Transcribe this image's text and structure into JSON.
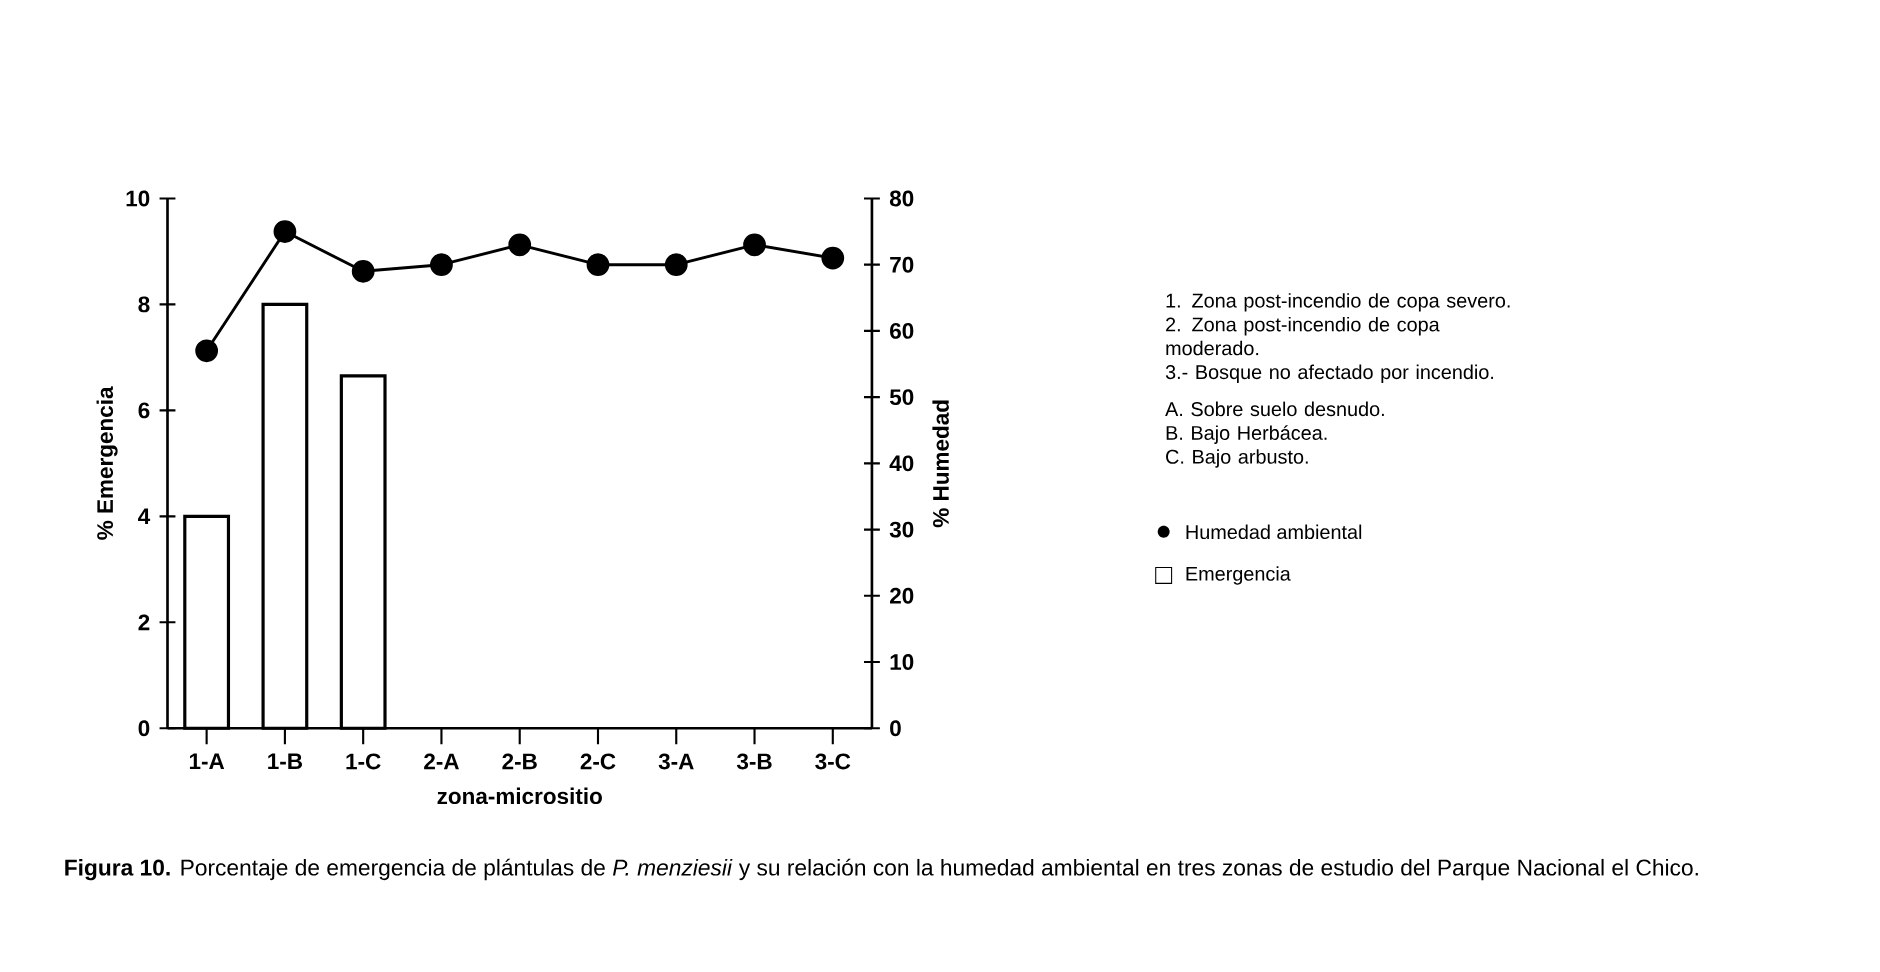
{
  "chart_data": {
    "type": "bar",
    "categories": [
      "1-A",
      "1-B",
      "1-C",
      "2-A",
      "2-B",
      "2-C",
      "3-A",
      "3-B",
      "3-C"
    ],
    "series": [
      {
        "name": "Humedad ambiental",
        "type": "line",
        "axis": "y2",
        "color": "#000000",
        "marker": "circle",
        "line_style": "solid",
        "values": [
          57,
          75,
          69,
          70,
          73,
          70,
          70,
          73,
          71
        ]
      },
      {
        "name": "Emergencia",
        "color": "#ffffff",
        "values": [
          4,
          8,
          6.65,
          null,
          null,
          null,
          null,
          null,
          null
        ]
      }
    ],
    "xlabel": "zona-micrositio",
    "ylabel": "% Emergencia",
    "y2label": "% Humedad",
    "ylim": [
      0,
      10
    ],
    "yticks": [
      0,
      2,
      4,
      6,
      8,
      10
    ],
    "y2lim": [
      0,
      80
    ],
    "y2ticks": [
      0,
      10,
      20,
      30,
      40,
      50,
      60,
      70,
      80
    ],
    "legend": "right",
    "grid": false,
    "annotations": [
      "1. Zona post-incendio de copa severo.",
      "2. Zona post-incendio de copa moderado.",
      "3.- Bosque no afectado por incendio.",
      "A. Sobre suelo desnudo.",
      "B. Bajo Herbácea.",
      "C. Bajo arbusto.",
      "**Figura 10.** Porcentaje de emergencia de plántulas de *P. menziesii* y su relación con la humedad ambiental en tres zonas de estudio del Parque Nacional el Chico."
    ]
  }
}
